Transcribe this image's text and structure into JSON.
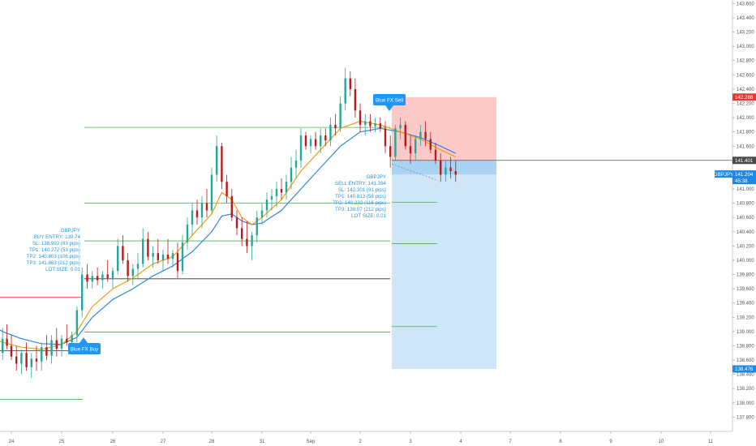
{
  "colors": {
    "bull": "#26a69a",
    "bull_dark": "#2e7d32",
    "bear": "#b71c1c",
    "ema_fast": "#f39c12",
    "ema_slow": "#2e86de",
    "info": "#2196f3",
    "tp_line": "#4caf50",
    "sl_line": "#e53935",
    "entry_line": "#333333",
    "stop_zone": "#fdc8c8",
    "target_zone": "#cfe6f8",
    "price_tag": "#1e88e5",
    "sl_tag": "#e53935"
  },
  "chart_data": {
    "type": "candlestick",
    "symbol": "GBPJPY",
    "y_axis": {
      "ylim": [
        137.6,
        143.65
      ],
      "ticks": [
        "137.800",
        "138.000",
        "138.200",
        "138.400",
        "138.600",
        "138.800",
        "139.000",
        "139.200",
        "139.400",
        "139.600",
        "139.800",
        "140.000",
        "140.200",
        "140.400",
        "140.600",
        "140.800",
        "141.000",
        "141.200",
        "141.400",
        "141.600",
        "141.800",
        "142.000",
        "142.200",
        "142.400",
        "142.600",
        "142.800",
        "143.000",
        "143.200",
        "143.400",
        "143.600"
      ],
      "tick_values": [
        137.8,
        138.0,
        138.2,
        138.4,
        138.6,
        138.8,
        139.0,
        139.2,
        139.4,
        139.6,
        139.8,
        140.0,
        140.2,
        140.4,
        140.6,
        140.8,
        141.0,
        141.2,
        141.4,
        141.6,
        141.8,
        142.0,
        142.2,
        142.4,
        142.6,
        142.8,
        143.0,
        143.2,
        143.4,
        143.6
      ]
    },
    "x_axis": {
      "ticks": [
        "24",
        "25",
        "26",
        "27",
        "28",
        "31",
        "Sep",
        "2",
        "3",
        "4",
        "7",
        "8",
        "9",
        "10",
        "11"
      ]
    },
    "price_labels": [
      {
        "name": "sl",
        "value": 142.288,
        "text": "142.288",
        "style": "sl"
      },
      {
        "name": "entry",
        "value": 141.401,
        "text": "141.401",
        "style": "entry"
      },
      {
        "name": "last",
        "value": 141.204,
        "text": "141.204",
        "sub": "45:38",
        "style": "last",
        "symbol": "GBPJPY"
      },
      {
        "name": "tp",
        "value": 138.476,
        "text": "138.476",
        "style": "tp"
      }
    ],
    "signals": [
      {
        "badge": "Blue FX Buy",
        "lines": [
          "GBPJPY",
          "BUY ENTRY: 139.74",
          "SL: 138.992 (83 pips)",
          "TP1: 140.272 (53 pips)",
          "TP2: 140.803 (106 pips)",
          "TP3: 141.863 (212 pips)",
          "LOT SIZE: 0.01"
        ]
      },
      {
        "badge": "Blue FX Sell",
        "lines": [
          "GBPJPY",
          "SELL ENTRY: 141.394",
          "SL: 142.301 (91 pips)",
          "TP1: 140.813 (58 pips)",
          "TP2: 140.232 (116 pips)",
          "TP3: 139.07 (212 pips)",
          "LOT SIZE: 0.01"
        ]
      }
    ],
    "levels": [
      {
        "name": "buy-tp3",
        "value": 141.863,
        "kind": "tp",
        "x0": 25.0,
        "x1": 33.6
      },
      {
        "name": "buy-tp2",
        "value": 140.803,
        "kind": "tp",
        "x0": 25.0,
        "x1": 33.6
      },
      {
        "name": "buy-tp1",
        "value": 140.272,
        "kind": "tp",
        "x0": 25.0,
        "x1": 33.6
      },
      {
        "name": "buy-entry",
        "value": 139.74,
        "kind": "entry",
        "x0": 25.0,
        "x1": 33.6
      },
      {
        "name": "buy-sl",
        "value": 138.992,
        "kind": "sl",
        "x0": 25.0,
        "x1": 33.6
      },
      {
        "name": "prev-sl",
        "value": 139.48,
        "kind": "sl",
        "x0": 23.4,
        "x1": 24.6
      },
      {
        "name": "prev-entry",
        "value": 138.73,
        "kind": "entry",
        "x0": 23.4,
        "x1": 24.6
      },
      {
        "name": "prev-tp",
        "value": 138.05,
        "kind": "tp",
        "x0": 23.4,
        "x1": 24.6
      },
      {
        "name": "sell-tp1",
        "value": 140.813,
        "kind": "tp",
        "x0": 33.6,
        "x1": 35.3
      },
      {
        "name": "sell-tp2",
        "value": 140.232,
        "kind": "tp",
        "x0": 33.6,
        "x1": 35.3
      },
      {
        "name": "sell-tp3",
        "value": 139.07,
        "kind": "tp",
        "x0": 33.6,
        "x1": 35.3
      }
    ],
    "position": {
      "entry": 141.401,
      "stop": 142.288,
      "target": 138.476,
      "current": 141.204,
      "x0": 33.6,
      "x1": 35.8
    },
    "candles": [
      {
        "t": 23.0,
        "o": 138.75,
        "h": 138.9,
        "l": 138.5,
        "c": 138.6
      },
      {
        "t": 23.1,
        "o": 138.6,
        "h": 138.8,
        "l": 138.45,
        "c": 138.7
      },
      {
        "t": 23.2,
        "o": 138.7,
        "h": 138.85,
        "l": 138.5,
        "c": 138.55
      },
      {
        "t": 23.3,
        "o": 138.55,
        "h": 138.75,
        "l": 138.4,
        "c": 138.65
      },
      {
        "t": 23.4,
        "o": 138.65,
        "h": 138.95,
        "l": 138.55,
        "c": 138.85
      },
      {
        "t": 23.5,
        "o": 138.85,
        "h": 138.9,
        "l": 138.5,
        "c": 138.6
      },
      {
        "t": 23.6,
        "o": 138.6,
        "h": 138.8,
        "l": 138.45,
        "c": 138.75
      },
      {
        "t": 23.7,
        "o": 138.75,
        "h": 138.95,
        "l": 138.6,
        "c": 138.7
      },
      {
        "t": 23.8,
        "o": 138.7,
        "h": 139.05,
        "l": 138.6,
        "c": 138.9
      },
      {
        "t": 23.9,
        "o": 138.9,
        "h": 139.1,
        "l": 138.75,
        "c": 138.8
      },
      {
        "t": 24.0,
        "o": 138.8,
        "h": 138.95,
        "l": 138.6,
        "c": 138.65
      },
      {
        "t": 24.1,
        "o": 138.65,
        "h": 138.8,
        "l": 138.45,
        "c": 138.55
      },
      {
        "t": 24.2,
        "o": 138.55,
        "h": 138.75,
        "l": 138.4,
        "c": 138.7
      },
      {
        "t": 24.3,
        "o": 138.7,
        "h": 138.85,
        "l": 138.45,
        "c": 138.5
      },
      {
        "t": 24.4,
        "o": 138.5,
        "h": 138.7,
        "l": 138.35,
        "c": 138.62
      },
      {
        "t": 24.5,
        "o": 138.62,
        "h": 138.8,
        "l": 138.45,
        "c": 138.58
      },
      {
        "t": 24.6,
        "o": 138.58,
        "h": 138.85,
        "l": 138.45,
        "c": 138.78
      },
      {
        "t": 24.7,
        "o": 138.78,
        "h": 138.95,
        "l": 138.6,
        "c": 138.66
      },
      {
        "t": 24.8,
        "o": 138.66,
        "h": 138.95,
        "l": 138.55,
        "c": 138.88
      },
      {
        "t": 24.9,
        "o": 138.88,
        "h": 139.05,
        "l": 138.65,
        "c": 138.76
      },
      {
        "t": 25.0,
        "o": 138.76,
        "h": 138.95,
        "l": 138.65,
        "c": 138.9
      },
      {
        "t": 25.1,
        "o": 138.9,
        "h": 139.1,
        "l": 138.8,
        "c": 138.85
      },
      {
        "t": 25.2,
        "o": 138.85,
        "h": 139.0,
        "l": 138.7,
        "c": 138.95
      },
      {
        "t": 25.3,
        "o": 138.95,
        "h": 139.35,
        "l": 138.85,
        "c": 139.3
      },
      {
        "t": 25.4,
        "o": 139.3,
        "h": 139.9,
        "l": 139.2,
        "c": 139.8
      },
      {
        "t": 25.5,
        "o": 139.8,
        "h": 139.95,
        "l": 139.6,
        "c": 139.7
      },
      {
        "t": 25.6,
        "o": 139.7,
        "h": 139.85,
        "l": 139.6,
        "c": 139.78
      },
      {
        "t": 25.7,
        "o": 139.78,
        "h": 139.9,
        "l": 139.65,
        "c": 139.72
      },
      {
        "t": 25.8,
        "o": 139.72,
        "h": 139.85,
        "l": 139.6,
        "c": 139.8
      },
      {
        "t": 25.9,
        "o": 139.8,
        "h": 140.0,
        "l": 139.7,
        "c": 139.75
      },
      {
        "t": 26.0,
        "o": 139.75,
        "h": 139.9,
        "l": 139.6,
        "c": 139.85
      },
      {
        "t": 26.1,
        "o": 139.85,
        "h": 140.3,
        "l": 139.8,
        "c": 140.2
      },
      {
        "t": 26.2,
        "o": 140.2,
        "h": 140.35,
        "l": 139.95,
        "c": 140.0
      },
      {
        "t": 26.3,
        "o": 140.0,
        "h": 140.1,
        "l": 139.7,
        "c": 139.78
      },
      {
        "t": 26.4,
        "o": 139.78,
        "h": 139.95,
        "l": 139.65,
        "c": 139.88
      },
      {
        "t": 26.5,
        "o": 139.88,
        "h": 140.1,
        "l": 139.75,
        "c": 139.95
      },
      {
        "t": 26.6,
        "o": 139.95,
        "h": 140.45,
        "l": 139.9,
        "c": 140.3
      },
      {
        "t": 26.7,
        "o": 140.3,
        "h": 140.4,
        "l": 140.0,
        "c": 140.05
      },
      {
        "t": 26.8,
        "o": 140.05,
        "h": 140.2,
        "l": 139.9,
        "c": 140.1
      },
      {
        "t": 26.9,
        "o": 140.1,
        "h": 140.3,
        "l": 139.95,
        "c": 140.0
      },
      {
        "t": 27.0,
        "o": 140.0,
        "h": 140.15,
        "l": 139.85,
        "c": 140.08
      },
      {
        "t": 27.1,
        "o": 140.08,
        "h": 140.3,
        "l": 139.95,
        "c": 140.02
      },
      {
        "t": 27.2,
        "o": 140.02,
        "h": 140.15,
        "l": 139.9,
        "c": 140.1
      },
      {
        "t": 27.3,
        "o": 140.1,
        "h": 140.25,
        "l": 139.75,
        "c": 139.85
      },
      {
        "t": 27.4,
        "o": 139.85,
        "h": 140.35,
        "l": 139.8,
        "c": 140.25
      },
      {
        "t": 27.5,
        "o": 140.25,
        "h": 140.6,
        "l": 140.15,
        "c": 140.5
      },
      {
        "t": 27.6,
        "o": 140.5,
        "h": 140.8,
        "l": 140.35,
        "c": 140.7
      },
      {
        "t": 27.7,
        "o": 140.7,
        "h": 140.85,
        "l": 140.5,
        "c": 140.6
      },
      {
        "t": 27.8,
        "o": 140.6,
        "h": 140.9,
        "l": 140.45,
        "c": 140.8
      },
      {
        "t": 27.9,
        "o": 140.8,
        "h": 141.0,
        "l": 140.6,
        "c": 140.7
      },
      {
        "t": 28.0,
        "o": 140.7,
        "h": 141.3,
        "l": 140.65,
        "c": 141.2
      },
      {
        "t": 28.1,
        "o": 141.2,
        "h": 141.75,
        "l": 141.1,
        "c": 141.6
      },
      {
        "t": 28.2,
        "o": 141.6,
        "h": 141.65,
        "l": 141.0,
        "c": 141.1
      },
      {
        "t": 28.3,
        "o": 141.1,
        "h": 141.2,
        "l": 140.8,
        "c": 140.9
      },
      {
        "t": 28.4,
        "o": 140.9,
        "h": 141.0,
        "l": 140.55,
        "c": 140.6
      },
      {
        "t": 28.5,
        "o": 140.6,
        "h": 140.7,
        "l": 140.35,
        "c": 140.45
      },
      {
        "t": 28.6,
        "o": 140.45,
        "h": 140.6,
        "l": 140.2,
        "c": 140.3
      },
      {
        "t": 28.7,
        "o": 140.3,
        "h": 140.55,
        "l": 140.1,
        "c": 140.2
      },
      {
        "t": 28.8,
        "o": 140.2,
        "h": 140.4,
        "l": 140.0,
        "c": 140.35
      },
      {
        "t": 28.9,
        "o": 140.35,
        "h": 140.7,
        "l": 140.25,
        "c": 140.6
      },
      {
        "t": 29.0,
        "o": 140.6,
        "h": 140.8,
        "l": 140.5,
        "c": 140.7
      },
      {
        "t": 29.1,
        "o": 140.7,
        "h": 140.95,
        "l": 140.6,
        "c": 140.85
      },
      {
        "t": 29.2,
        "o": 140.85,
        "h": 141.0,
        "l": 140.7,
        "c": 140.9
      },
      {
        "t": 29.3,
        "o": 140.9,
        "h": 141.1,
        "l": 140.75,
        "c": 141.0
      },
      {
        "t": 29.4,
        "o": 141.0,
        "h": 141.15,
        "l": 140.85,
        "c": 140.95
      },
      {
        "t": 29.5,
        "o": 140.95,
        "h": 141.2,
        "l": 140.85,
        "c": 141.1
      },
      {
        "t": 29.6,
        "o": 141.1,
        "h": 141.45,
        "l": 141.0,
        "c": 141.3
      },
      {
        "t": 29.7,
        "o": 141.3,
        "h": 141.55,
        "l": 141.15,
        "c": 141.4
      },
      {
        "t": 29.8,
        "o": 141.4,
        "h": 141.85,
        "l": 141.3,
        "c": 141.75
      },
      {
        "t": 29.9,
        "o": 141.75,
        "h": 141.8,
        "l": 141.55,
        "c": 141.6
      },
      {
        "t": 30.0,
        "o": 141.6,
        "h": 141.75,
        "l": 141.5,
        "c": 141.7
      },
      {
        "t": 30.1,
        "o": 141.7,
        "h": 141.8,
        "l": 141.55,
        "c": 141.6
      },
      {
        "t": 30.2,
        "o": 141.6,
        "h": 141.85,
        "l": 141.5,
        "c": 141.75
      },
      {
        "t": 30.3,
        "o": 141.75,
        "h": 141.85,
        "l": 141.6,
        "c": 141.68
      },
      {
        "t": 30.4,
        "o": 141.68,
        "h": 142.0,
        "l": 141.6,
        "c": 141.9
      },
      {
        "t": 30.5,
        "o": 141.9,
        "h": 142.05,
        "l": 141.75,
        "c": 141.85
      },
      {
        "t": 30.6,
        "o": 141.85,
        "h": 142.3,
        "l": 141.8,
        "c": 142.2
      },
      {
        "t": 30.7,
        "o": 142.2,
        "h": 142.7,
        "l": 142.1,
        "c": 142.55
      },
      {
        "t": 30.8,
        "o": 142.55,
        "h": 142.65,
        "l": 142.3,
        "c": 142.4
      },
      {
        "t": 30.9,
        "o": 142.4,
        "h": 142.55,
        "l": 142.0,
        "c": 142.1
      },
      {
        "t": 31.0,
        "o": 142.1,
        "h": 142.2,
        "l": 141.8,
        "c": 141.9
      },
      {
        "t": 31.1,
        "o": 141.9,
        "h": 142.05,
        "l": 141.75,
        "c": 141.95
      },
      {
        "t": 31.2,
        "o": 141.95,
        "h": 142.05,
        "l": 141.8,
        "c": 141.88
      },
      {
        "t": 31.3,
        "o": 141.88,
        "h": 142.0,
        "l": 141.8,
        "c": 141.92
      },
      {
        "t": 31.4,
        "o": 141.92,
        "h": 142.0,
        "l": 141.8,
        "c": 141.85
      },
      {
        "t": 31.5,
        "o": 141.85,
        "h": 141.95,
        "l": 141.5,
        "c": 141.6
      },
      {
        "t": 31.6,
        "o": 141.6,
        "h": 141.75,
        "l": 141.3,
        "c": 141.45
      },
      {
        "t": 31.7,
        "o": 141.45,
        "h": 141.9,
        "l": 141.4,
        "c": 141.85
      },
      {
        "t": 31.8,
        "o": 141.85,
        "h": 142.0,
        "l": 141.7,
        "c": 141.9
      },
      {
        "t": 31.9,
        "o": 141.9,
        "h": 141.95,
        "l": 141.55,
        "c": 141.6
      },
      {
        "t": 32.0,
        "o": 141.6,
        "h": 141.75,
        "l": 141.35,
        "c": 141.5
      },
      {
        "t": 32.1,
        "o": 141.5,
        "h": 141.75,
        "l": 141.4,
        "c": 141.7
      },
      {
        "t": 32.2,
        "o": 141.7,
        "h": 141.9,
        "l": 141.6,
        "c": 141.8
      },
      {
        "t": 32.3,
        "o": 141.8,
        "h": 141.95,
        "l": 141.6,
        "c": 141.7
      },
      {
        "t": 32.4,
        "o": 141.7,
        "h": 141.8,
        "l": 141.5,
        "c": 141.55
      },
      {
        "t": 32.5,
        "o": 141.55,
        "h": 141.65,
        "l": 141.35,
        "c": 141.4
      },
      {
        "t": 32.6,
        "o": 141.4,
        "h": 141.5,
        "l": 141.1,
        "c": 141.2
      },
      {
        "t": 32.7,
        "o": 141.2,
        "h": 141.4,
        "l": 141.1,
        "c": 141.3
      },
      {
        "t": 32.8,
        "o": 141.3,
        "h": 141.45,
        "l": 141.15,
        "c": 141.25
      },
      {
        "t": 32.9,
        "o": 141.25,
        "h": 141.4,
        "l": 141.1,
        "c": 141.2
      }
    ],
    "ema_fast": [
      [
        23.0,
        139.1
      ],
      [
        23.4,
        138.95
      ],
      [
        23.8,
        138.85
      ],
      [
        24.2,
        138.78
      ],
      [
        24.6,
        138.75
      ],
      [
        25.0,
        138.82
      ],
      [
        25.3,
        139.0
      ],
      [
        25.6,
        139.35
      ],
      [
        26.0,
        139.6
      ],
      [
        26.4,
        139.75
      ],
      [
        26.8,
        139.95
      ],
      [
        27.2,
        140.05
      ],
      [
        27.6,
        140.35
      ],
      [
        28.0,
        140.65
      ],
      [
        28.2,
        140.95
      ],
      [
        28.4,
        140.85
      ],
      [
        28.6,
        140.6
      ],
      [
        28.8,
        140.5
      ],
      [
        29.0,
        140.6
      ],
      [
        29.4,
        140.85
      ],
      [
        29.8,
        141.25
      ],
      [
        30.2,
        141.55
      ],
      [
        30.6,
        141.85
      ],
      [
        31.0,
        141.95
      ],
      [
        31.4,
        141.9
      ],
      [
        31.8,
        141.8
      ],
      [
        32.2,
        141.7
      ],
      [
        32.6,
        141.55
      ],
      [
        32.9,
        141.45
      ]
    ],
    "ema_slow": [
      [
        23.0,
        139.35
      ],
      [
        23.4,
        139.15
      ],
      [
        23.8,
        139.0
      ],
      [
        24.2,
        138.9
      ],
      [
        24.6,
        138.83
      ],
      [
        25.0,
        138.82
      ],
      [
        25.3,
        138.92
      ],
      [
        25.6,
        139.2
      ],
      [
        26.0,
        139.45
      ],
      [
        26.4,
        139.6
      ],
      [
        26.8,
        139.78
      ],
      [
        27.2,
        139.92
      ],
      [
        27.6,
        140.12
      ],
      [
        28.0,
        140.4
      ],
      [
        28.2,
        140.62
      ],
      [
        28.4,
        140.65
      ],
      [
        28.6,
        140.55
      ],
      [
        28.8,
        140.5
      ],
      [
        29.0,
        140.52
      ],
      [
        29.4,
        140.7
      ],
      [
        29.8,
        141.0
      ],
      [
        30.2,
        141.3
      ],
      [
        30.6,
        141.6
      ],
      [
        31.0,
        141.8
      ],
      [
        31.4,
        141.85
      ],
      [
        31.8,
        141.8
      ],
      [
        32.2,
        141.72
      ],
      [
        32.6,
        141.6
      ],
      [
        32.9,
        141.5
      ]
    ]
  }
}
